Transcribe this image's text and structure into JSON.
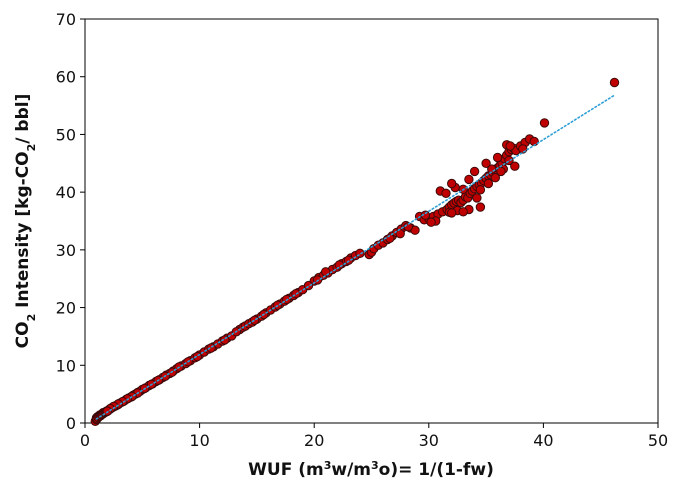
{
  "chart_data": {
    "type": "scatter",
    "xlabel": {
      "parts": [
        {
          "t": "WUF (m"
        },
        {
          "t": "3",
          "sup": true
        },
        {
          "t": "w/m"
        },
        {
          "t": "3",
          "sup": true
        },
        {
          "t": "o)= 1/(1-fw)"
        }
      ]
    },
    "ylabel": {
      "parts": [
        {
          "t": "CO"
        },
        {
          "t": "2",
          "sub": true
        },
        {
          "t": " Intensity [kg-CO"
        },
        {
          "t": "2",
          "sub": true
        },
        {
          "t": "/ bbl]"
        }
      ]
    },
    "xlim": [
      0,
      50
    ],
    "ylim": [
      0,
      70
    ],
    "xticks": [
      0,
      10,
      20,
      30,
      40,
      50
    ],
    "yticks": [
      0,
      10,
      20,
      30,
      40,
      50,
      60,
      70
    ],
    "grid": false,
    "legend": "none",
    "marker_fill": "#c00000",
    "marker_edge": "#3a0a0a",
    "trendline_color": "#2e9fd6",
    "trendline": {
      "style": "dotted",
      "x": [
        1.0,
        46.2
      ],
      "y": [
        0.7,
        56.8
      ]
    },
    "series": [
      {
        "points": [
          [
            1.0,
            0.8
          ],
          [
            1.1,
            1.0
          ],
          [
            1.2,
            1.1
          ],
          [
            1.3,
            1.3
          ],
          [
            1.4,
            1.4
          ],
          [
            1.5,
            1.6
          ],
          [
            1.6,
            1.7
          ],
          [
            1.7,
            1.8
          ],
          [
            1.8,
            1.9
          ],
          [
            1.9,
            2.0
          ],
          [
            2.0,
            2.1
          ],
          [
            2.1,
            2.3
          ],
          [
            2.2,
            2.4
          ],
          [
            2.3,
            2.6
          ],
          [
            2.4,
            2.7
          ],
          [
            2.5,
            2.8
          ],
          [
            2.6,
            2.9
          ],
          [
            2.7,
            3.0
          ],
          [
            2.8,
            3.1
          ],
          [
            2.9,
            3.2
          ],
          [
            3.0,
            3.4
          ],
          [
            3.2,
            3.6
          ],
          [
            3.4,
            3.8
          ],
          [
            3.6,
            4.1
          ],
          [
            3.8,
            4.3
          ],
          [
            4.0,
            4.5
          ],
          [
            4.2,
            4.8
          ],
          [
            4.4,
            5.0
          ],
          [
            4.6,
            5.3
          ],
          [
            4.8,
            5.5
          ],
          [
            5.0,
            5.8
          ],
          [
            5.3,
            6.1
          ],
          [
            5.6,
            6.5
          ],
          [
            5.9,
            6.8
          ],
          [
            6.2,
            7.2
          ],
          [
            6.5,
            7.5
          ],
          [
            6.8,
            7.9
          ],
          [
            7.1,
            8.3
          ],
          [
            7.4,
            8.6
          ],
          [
            7.7,
            9.0
          ],
          [
            8.0,
            9.4
          ],
          [
            8.4,
            9.9
          ],
          [
            8.8,
            10.3
          ],
          [
            9.2,
            10.8
          ],
          [
            9.6,
            11.3
          ],
          [
            10.0,
            11.8
          ],
          [
            10.4,
            12.3
          ],
          [
            10.8,
            12.8
          ],
          [
            11.2,
            13.2
          ],
          [
            11.6,
            13.7
          ],
          [
            12.0,
            14.2
          ],
          [
            12.4,
            14.7
          ],
          [
            12.8,
            15.1
          ],
          [
            13.5,
            16.2
          ],
          [
            13.8,
            16.6
          ],
          [
            14.0,
            16.8
          ],
          [
            14.3,
            17.2
          ],
          [
            14.6,
            17.5
          ],
          [
            15.0,
            18.0
          ],
          [
            15.4,
            18.5
          ],
          [
            15.8,
            19.1
          ],
          [
            16.2,
            19.6
          ],
          [
            16.6,
            20.1
          ],
          [
            17.0,
            20.6
          ],
          [
            17.4,
            21.1
          ],
          [
            17.8,
            21.6
          ],
          [
            18.2,
            22.1
          ],
          [
            18.6,
            22.6
          ],
          [
            19.0,
            23.1
          ],
          [
            20.0,
            24.6
          ],
          [
            20.4,
            25.2
          ],
          [
            20.8,
            25.6
          ],
          [
            21.2,
            26.0
          ],
          [
            21.6,
            26.6
          ],
          [
            22.0,
            27.0
          ],
          [
            22.4,
            27.6
          ],
          [
            22.8,
            28.0
          ],
          [
            23.2,
            28.6
          ],
          [
            23.6,
            29.0
          ],
          [
            24.0,
            29.4
          ],
          [
            24.8,
            29.2
          ],
          [
            25.0,
            29.6
          ],
          [
            25.2,
            30.2
          ],
          [
            25.6,
            30.8
          ],
          [
            26.0,
            31.2
          ],
          [
            26.4,
            31.8
          ],
          [
            26.8,
            32.4
          ],
          [
            27.2,
            33.0
          ],
          [
            27.6,
            33.6
          ],
          [
            28.0,
            34.2
          ],
          [
            28.4,
            33.8
          ],
          [
            28.8,
            33.4
          ],
          [
            29.2,
            35.8
          ],
          [
            29.6,
            35.2
          ],
          [
            30.0,
            35.4
          ],
          [
            30.4,
            35.8
          ],
          [
            30.8,
            36.2
          ],
          [
            31.2,
            36.6
          ],
          [
            31.6,
            37.0
          ],
          [
            31.8,
            37.4
          ],
          [
            32.0,
            37.8
          ],
          [
            32.2,
            38.1
          ],
          [
            32.4,
            38.4
          ],
          [
            32.6,
            38.6
          ],
          [
            32.8,
            38.2
          ],
          [
            33.0,
            38.6
          ],
          [
            33.2,
            39.2
          ],
          [
            33.4,
            39.0
          ],
          [
            33.6,
            39.8
          ],
          [
            33.8,
            40.2
          ],
          [
            34.0,
            40.6
          ],
          [
            34.2,
            41.0
          ],
          [
            34.4,
            41.3
          ],
          [
            34.6,
            41.6
          ],
          [
            34.8,
            42.0
          ],
          [
            35.0,
            42.4
          ],
          [
            35.2,
            42.8
          ],
          [
            35.4,
            43.0
          ],
          [
            35.6,
            43.4
          ],
          [
            35.8,
            43.8
          ],
          [
            36.0,
            44.2
          ],
          [
            36.2,
            44.6
          ],
          [
            36.4,
            45.0
          ],
          [
            36.6,
            45.8
          ],
          [
            36.8,
            46.4
          ],
          [
            37.0,
            47.0
          ],
          [
            37.2,
            47.4
          ],
          [
            37.4,
            47.6
          ],
          [
            37.6,
            47.2
          ],
          [
            38.0,
            48.0
          ],
          [
            38.4,
            48.6
          ],
          [
            38.8,
            49.2
          ],
          [
            39.2,
            48.8
          ],
          [
            31.0,
            40.2
          ],
          [
            31.5,
            39.8
          ],
          [
            32.3,
            40.8
          ],
          [
            33.0,
            40.5
          ],
          [
            34.5,
            40.4
          ],
          [
            35.2,
            41.5
          ],
          [
            35.8,
            42.5
          ],
          [
            36.5,
            44.0
          ],
          [
            37.0,
            45.5
          ],
          [
            36.8,
            48.2
          ],
          [
            37.1,
            48.0
          ],
          [
            36.3,
            43.6
          ],
          [
            35.5,
            44.0
          ],
          [
            34.0,
            43.6
          ],
          [
            33.5,
            42.2
          ],
          [
            32.0,
            41.5
          ],
          [
            31.8,
            36.5
          ],
          [
            32.5,
            36.8
          ],
          [
            33.5,
            37.0
          ],
          [
            34.5,
            37.4
          ],
          [
            40.1,
            52.0
          ],
          [
            46.2,
            59.0
          ],
          [
            37.5,
            44.5
          ],
          [
            38.2,
            47.5
          ],
          [
            36.0,
            46.0
          ],
          [
            35.0,
            45.0
          ],
          [
            34.2,
            39.0
          ],
          [
            33.0,
            36.6
          ],
          [
            32.0,
            36.4
          ],
          [
            30.6,
            35.0
          ],
          [
            30.2,
            34.8
          ],
          [
            29.7,
            36.0
          ],
          [
            28.2,
            34.0
          ],
          [
            27.5,
            32.8
          ],
          [
            26.6,
            32.0
          ],
          [
            23.0,
            28.2
          ],
          [
            22.2,
            27.4
          ],
          [
            21.0,
            26.2
          ],
          [
            20.3,
            24.8
          ],
          [
            19.5,
            23.8
          ],
          [
            18.4,
            22.4
          ],
          [
            17.6,
            21.4
          ],
          [
            16.8,
            20.4
          ],
          [
            15.6,
            18.8
          ],
          [
            14.8,
            17.8
          ],
          [
            13.2,
            15.8
          ],
          [
            12.2,
            14.4
          ],
          [
            11.0,
            13.0
          ],
          [
            9.8,
            11.5
          ],
          [
            9.0,
            10.6
          ],
          [
            8.2,
            9.7
          ],
          [
            7.6,
            8.8
          ],
          [
            7.0,
            8.1
          ],
          [
            6.4,
            7.4
          ],
          [
            5.8,
            6.7
          ],
          [
            5.2,
            6.0
          ],
          [
            4.6,
            5.2
          ],
          [
            4.1,
            4.6
          ],
          [
            3.7,
            4.2
          ],
          [
            3.3,
            3.7
          ],
          [
            2.9,
            3.3
          ],
          [
            2.5,
            2.9
          ],
          [
            2.2,
            2.5
          ],
          [
            1.9,
            2.1
          ],
          [
            1.6,
            1.8
          ],
          [
            1.3,
            1.4
          ],
          [
            1.1,
            1.1
          ],
          [
            1.0,
            0.9
          ],
          [
            0.9,
            0.3
          ],
          [
            1.0,
            0.6
          ],
          [
            1.05,
            0.75
          ],
          [
            1.15,
            0.95
          ],
          [
            1.25,
            1.15
          ],
          [
            1.35,
            1.25
          ],
          [
            1.45,
            1.45
          ],
          [
            1.55,
            1.55
          ],
          [
            1.65,
            1.75
          ],
          [
            1.75,
            1.85
          ],
          [
            1.85,
            1.95
          ],
          [
            1.95,
            2.05
          ]
        ]
      }
    ]
  }
}
